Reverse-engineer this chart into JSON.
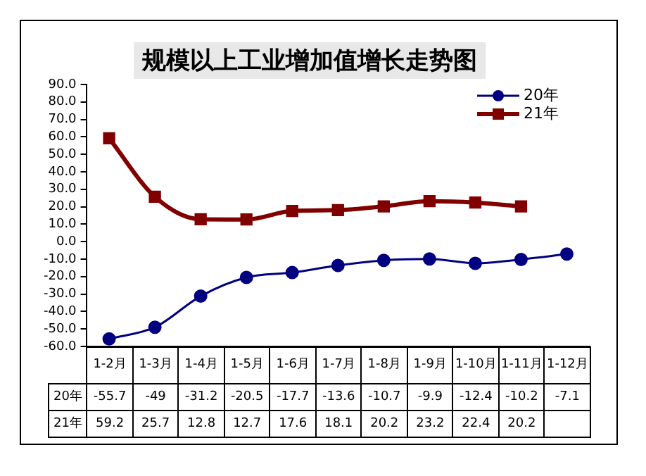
{
  "chart_data": {
    "type": "line",
    "title": "规模以上工业增加值增长走势图",
    "categories": [
      "1-2月",
      "1-3月",
      "1-4月",
      "1-5月",
      "1-6月",
      "1-7月",
      "1-8月",
      "1-9月",
      "1-10月",
      "1-11月",
      "1-12月"
    ],
    "series": [
      {
        "name": "20年",
        "color": "#000080",
        "marker": "circle",
        "values": [
          -55.7,
          -49,
          -31.2,
          -20.5,
          -17.7,
          -13.6,
          -10.7,
          -9.9,
          -12.4,
          -10.2,
          -7.1
        ]
      },
      {
        "name": "21年",
        "color": "#800000",
        "marker": "square",
        "values": [
          59.2,
          25.7,
          12.8,
          12.7,
          17.6,
          18.1,
          20.2,
          23.2,
          22.4,
          20.2,
          null
        ]
      }
    ],
    "ylim": [
      -60,
      90
    ],
    "yticks": [
      {
        "value": -60,
        "label": "-60.0"
      },
      {
        "value": -50,
        "label": "-50.0"
      },
      {
        "value": -40,
        "label": "-40.0"
      },
      {
        "value": -30,
        "label": "-30.0"
      },
      {
        "value": -20,
        "label": "-20.0"
      },
      {
        "value": -10,
        "label": "-10.0"
      },
      {
        "value": 0,
        "label": "0.0"
      },
      {
        "value": 10,
        "label": "10.0"
      },
      {
        "value": 20,
        "label": "20.0"
      },
      {
        "value": 30,
        "label": "30.0"
      },
      {
        "value": 40,
        "label": "40.0"
      },
      {
        "value": 50,
        "label": "50.0"
      },
      {
        "value": 60,
        "label": "60.0"
      },
      {
        "value": 70,
        "label": "70.0"
      },
      {
        "value": 80,
        "label": "80.0"
      },
      {
        "value": 90,
        "label": "90.0"
      }
    ],
    "grid": false,
    "legend": "top right",
    "data_labels": true
  }
}
